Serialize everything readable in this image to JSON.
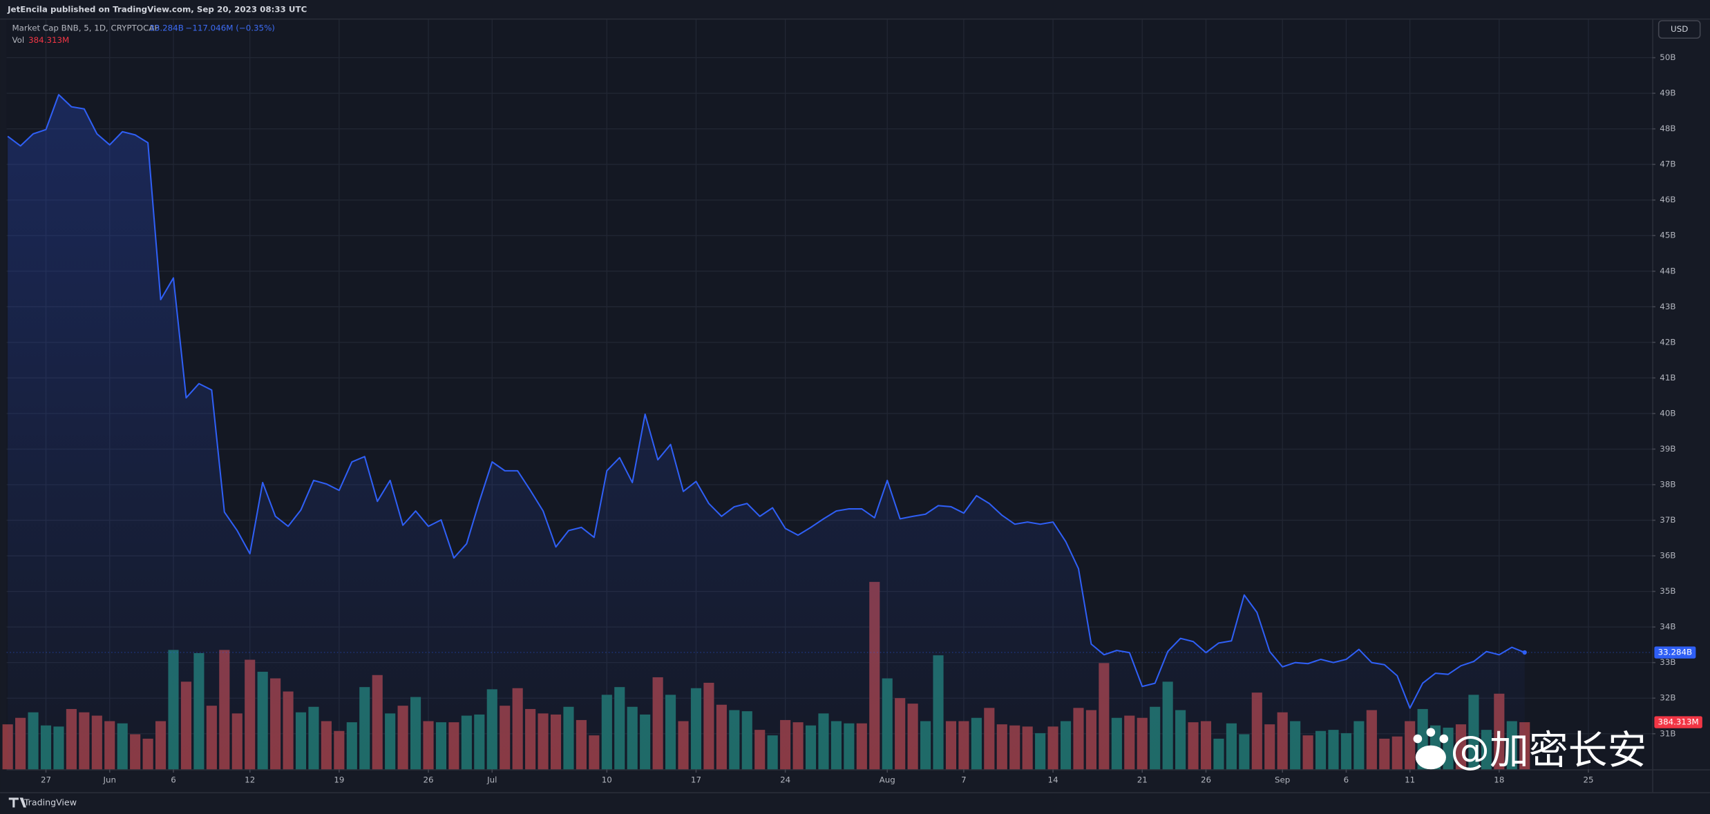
{
  "chart_data": {
    "type": "line",
    "publisher": "JetEncila published on TradingView.com, Sep 20, 2023 08:33 UTC",
    "footer": "TradingView",
    "watermark": "@加密长安",
    "currency": "USD",
    "grid": true,
    "x": [
      "2023-05-24",
      "2023-05-25",
      "2023-05-26",
      "2023-05-27",
      "2023-05-28",
      "2023-05-29",
      "2023-05-30",
      "2023-05-31",
      "2023-06-01",
      "2023-06-02",
      "2023-06-03",
      "2023-06-04",
      "2023-06-05",
      "2023-06-06",
      "2023-06-07",
      "2023-06-08",
      "2023-06-09",
      "2023-06-10",
      "2023-06-11",
      "2023-06-12",
      "2023-06-13",
      "2023-06-14",
      "2023-06-15",
      "2023-06-16",
      "2023-06-17",
      "2023-06-18",
      "2023-06-19",
      "2023-06-20",
      "2023-06-21",
      "2023-06-22",
      "2023-06-23",
      "2023-06-24",
      "2023-06-25",
      "2023-06-26",
      "2023-06-27",
      "2023-06-28",
      "2023-06-29",
      "2023-06-30",
      "2023-07-01",
      "2023-07-02",
      "2023-07-03",
      "2023-07-04",
      "2023-07-05",
      "2023-07-06",
      "2023-07-07",
      "2023-07-08",
      "2023-07-09",
      "2023-07-10",
      "2023-07-11",
      "2023-07-12",
      "2023-07-13",
      "2023-07-14",
      "2023-07-15",
      "2023-07-16",
      "2023-07-17",
      "2023-07-18",
      "2023-07-19",
      "2023-07-20",
      "2023-07-21",
      "2023-07-22",
      "2023-07-23",
      "2023-07-24",
      "2023-07-25",
      "2023-07-26",
      "2023-07-27",
      "2023-07-28",
      "2023-07-29",
      "2023-07-30",
      "2023-07-31",
      "2023-08-01",
      "2023-08-02",
      "2023-08-03",
      "2023-08-04",
      "2023-08-05",
      "2023-08-06",
      "2023-08-07",
      "2023-08-08",
      "2023-08-09",
      "2023-08-10",
      "2023-08-11",
      "2023-08-12",
      "2023-08-13",
      "2023-08-14",
      "2023-08-15",
      "2023-08-16",
      "2023-08-17",
      "2023-08-18",
      "2023-08-19",
      "2023-08-20",
      "2023-08-21",
      "2023-08-22",
      "2023-08-23",
      "2023-08-24",
      "2023-08-25",
      "2023-08-26",
      "2023-08-27",
      "2023-08-28",
      "2023-08-29",
      "2023-08-30",
      "2023-08-31",
      "2023-09-01",
      "2023-09-02",
      "2023-09-03",
      "2023-09-04",
      "2023-09-05",
      "2023-09-06",
      "2023-09-07",
      "2023-09-08",
      "2023-09-09",
      "2023-09-10",
      "2023-09-11",
      "2023-09-12",
      "2023-09-13",
      "2023-09-14",
      "2023-09-15",
      "2023-09-16",
      "2023-09-17",
      "2023-09-18",
      "2023-09-19",
      "2023-09-20"
    ],
    "xlim": [
      "2023-05-24",
      "2023-09-30"
    ],
    "xticks": [
      {
        "value": "2023-05-27",
        "label": "27"
      },
      {
        "value": "2023-06-01",
        "label": "Jun"
      },
      {
        "value": "2023-06-06",
        "label": "6"
      },
      {
        "value": "2023-06-12",
        "label": "12"
      },
      {
        "value": "2023-06-19",
        "label": "19"
      },
      {
        "value": "2023-06-26",
        "label": "26"
      },
      {
        "value": "2023-07-01",
        "label": "Jul"
      },
      {
        "value": "2023-07-10",
        "label": "10"
      },
      {
        "value": "2023-07-17",
        "label": "17"
      },
      {
        "value": "2023-07-24",
        "label": "24"
      },
      {
        "value": "2023-08-01",
        "label": "Aug"
      },
      {
        "value": "2023-08-07",
        "label": "7"
      },
      {
        "value": "2023-08-14",
        "label": "14"
      },
      {
        "value": "2023-08-21",
        "label": "21"
      },
      {
        "value": "2023-08-26",
        "label": "26"
      },
      {
        "value": "2023-09-01",
        "label": "Sep"
      },
      {
        "value": "2023-09-06",
        "label": "6"
      },
      {
        "value": "2023-09-11",
        "label": "11"
      },
      {
        "value": "2023-09-18",
        "label": "18"
      },
      {
        "value": "2023-09-25",
        "label": "25"
      }
    ],
    "ylim": [
      30,
      51.07
    ],
    "yticks": [
      {
        "value": 31,
        "label": "31B"
      },
      {
        "value": 32,
        "label": "32B"
      },
      {
        "value": 33,
        "label": "33B"
      },
      {
        "value": 34,
        "label": "34B"
      },
      {
        "value": 35,
        "label": "35B"
      },
      {
        "value": 36,
        "label": "36B"
      },
      {
        "value": 37,
        "label": "37B"
      },
      {
        "value": 38,
        "label": "38B"
      },
      {
        "value": 39,
        "label": "39B"
      },
      {
        "value": 40,
        "label": "40B"
      },
      {
        "value": 41,
        "label": "41B"
      },
      {
        "value": 42,
        "label": "42B"
      },
      {
        "value": 43,
        "label": "43B"
      },
      {
        "value": 44,
        "label": "44B"
      },
      {
        "value": 45,
        "label": "45B"
      },
      {
        "value": 46,
        "label": "46B"
      },
      {
        "value": 47,
        "label": "47B"
      },
      {
        "value": 48,
        "label": "48B"
      },
      {
        "value": 49,
        "label": "49B"
      },
      {
        "value": 50,
        "label": "50B"
      }
    ],
    "series": [
      {
        "name": "Market Cap BNB, 5, 1D, CRYPTOCAP",
        "type": "line",
        "color": "#2f5ff5",
        "last_label": "33.284B",
        "change_label": "−117.046M (−0.35%)",
        "values": [
          47.79,
          47.52,
          47.86,
          47.98,
          48.96,
          48.62,
          48.56,
          47.86,
          47.55,
          47.92,
          47.83,
          47.61,
          43.2,
          43.81,
          40.44,
          40.84,
          40.66,
          37.23,
          36.71,
          36.06,
          38.06,
          37.11,
          36.83,
          37.29,
          38.12,
          38.02,
          37.84,
          38.64,
          38.79,
          37.53,
          38.12,
          36.86,
          37.26,
          36.83,
          37.01,
          35.94,
          36.34,
          37.53,
          38.64,
          38.39,
          38.39,
          37.84,
          37.26,
          36.25,
          36.71,
          36.8,
          36.52,
          38.39,
          38.76,
          38.06,
          39.98,
          38.7,
          39.13,
          37.81,
          38.09,
          37.47,
          37.11,
          37.38,
          37.47,
          37.11,
          37.35,
          36.77,
          36.58,
          36.8,
          37.04,
          37.26,
          37.32,
          37.32,
          37.07,
          38.12,
          37.04,
          37.11,
          37.17,
          37.41,
          37.38,
          37.2,
          37.69,
          37.47,
          37.14,
          36.89,
          36.95,
          36.89,
          36.95,
          36.4,
          35.64,
          33.52,
          33.22,
          33.34,
          33.28,
          32.33,
          32.42,
          33.31,
          33.68,
          33.59,
          33.28,
          33.55,
          33.61,
          34.9,
          34.41,
          33.31,
          32.88,
          33.0,
          32.97,
          33.09,
          33.0,
          33.09,
          33.37,
          33.0,
          32.94,
          32.63,
          31.72,
          32.42,
          32.7,
          32.67,
          32.91,
          33.03,
          33.31,
          33.22,
          33.43,
          33.284
        ]
      },
      {
        "name": "Vol",
        "type": "bar",
        "last_label": "384.313M",
        "label_color": "#f23645",
        "values": [
          367,
          420,
          465,
          358,
          349,
          492,
          465,
          438,
          393,
          375,
          286,
          250,
          393,
          974,
          715,
          948,
          519,
          974,
          456,
          894,
          796,
          742,
          635,
          465,
          510,
          393,
          313,
          384,
          671,
          769,
          456,
          519,
          590,
          393,
          384,
          384,
          438,
          447,
          653,
          519,
          662,
          492,
          456,
          447,
          510,
          402,
          277,
          608,
          671,
          510,
          447,
          751,
          608,
          393,
          662,
          706,
          527,
          483,
          474,
          322,
          277,
          402,
          384,
          358,
          456,
          393,
          375,
          375,
          1529,
          742,
          581,
          536,
          393,
          930,
          393,
          393,
          420,
          501,
          367,
          358,
          349,
          295,
          349,
          393,
          501,
          483,
          867,
          420,
          438,
          420,
          510,
          715,
          483,
          384,
          393,
          250,
          375,
          286,
          626,
          367,
          465,
          393,
          277,
          313,
          322,
          295,
          393,
          483,
          250,
          268,
          393,
          492,
          358,
          340,
          367,
          608,
          322,
          617,
          393,
          384.313
        ],
        "colors": [
          "#8a3a41",
          "#8a3a41",
          "#1f6b65",
          "#1f6b65",
          "#1f6b65",
          "#8a3a41",
          "#8a3a41",
          "#8a3a41",
          "#8a3a41",
          "#1f6b65",
          "#8a3a41",
          "#8a3a41",
          "#8a3a41",
          "#1f6b65",
          "#8a3a41",
          "#1f6b65",
          "#8a3a41",
          "#8a3a41",
          "#8a3a41",
          "#8a3a41",
          "#1f6b65",
          "#8a3a41",
          "#8a3a41",
          "#1f6b65",
          "#1f6b65",
          "#8a3a41",
          "#8a3a41",
          "#1f6b65",
          "#1f6b65",
          "#8a3a41",
          "#1f6b65",
          "#8a3a41",
          "#1f6b65",
          "#8a3a41",
          "#1f6b65",
          "#8a3a41",
          "#1f6b65",
          "#1f6b65",
          "#1f6b65",
          "#8a3a41",
          "#8a3a41",
          "#8a3a41",
          "#8a3a41",
          "#8a3a41",
          "#1f6b65",
          "#8a3a41",
          "#8a3a41",
          "#1f6b65",
          "#1f6b65",
          "#1f6b65",
          "#1f6b65",
          "#8a3a41",
          "#1f6b65",
          "#8a3a41",
          "#1f6b65",
          "#8a3a41",
          "#8a3a41",
          "#1f6b65",
          "#1f6b65",
          "#8a3a41",
          "#1f6b65",
          "#8a3a41",
          "#8a3a41",
          "#1f6b65",
          "#1f6b65",
          "#1f6b65",
          "#1f6b65",
          "#8a3a41",
          "#8a3a41",
          "#1f6b65",
          "#8a3a41",
          "#8a3a41",
          "#1f6b65",
          "#1f6b65",
          "#8a3a41",
          "#8a3a41",
          "#1f6b65",
          "#8a3a41",
          "#8a3a41",
          "#8a3a41",
          "#8a3a41",
          "#1f6b65",
          "#8a3a41",
          "#1f6b65",
          "#8a3a41",
          "#8a3a41",
          "#8a3a41",
          "#1f6b65",
          "#8a3a41",
          "#8a3a41",
          "#1f6b65",
          "#1f6b65",
          "#1f6b65",
          "#8a3a41",
          "#8a3a41",
          "#1f6b65",
          "#1f6b65",
          "#1f6b65",
          "#8a3a41",
          "#8a3a41",
          "#8a3a41",
          "#1f6b65",
          "#8a3a41",
          "#1f6b65",
          "#1f6b65",
          "#1f6b65",
          "#1f6b65",
          "#8a3a41",
          "#8a3a41",
          "#8a3a41",
          "#8a3a41",
          "#1f6b65",
          "#1f6b65",
          "#1f6b65",
          "#8a3a41",
          "#1f6b65",
          "#1f6b65",
          "#8a3a41",
          "#1f6b65",
          "#8a3a41"
        ]
      }
    ]
  }
}
